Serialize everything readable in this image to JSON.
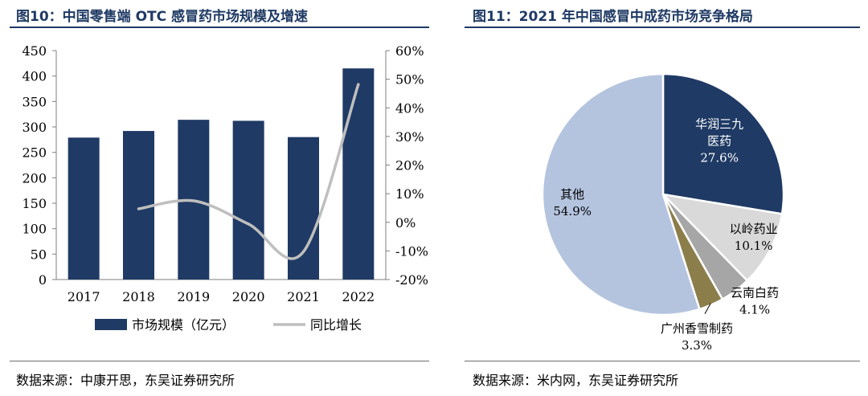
{
  "left": {
    "title": "图10：中国零售端 OTC 感冒药市场规模及增速",
    "source": "数据来源：中康开思，东吴证券研究所"
  },
  "right": {
    "title": "图11：2021 年中国感冒中成药市场竞争格局",
    "source": "数据来源：米内网，东吴证券研究所"
  },
  "chart_data": [
    {
      "type": "bar",
      "categories": [
        "2017",
        "2018",
        "2019",
        "2020",
        "2021",
        "2022"
      ],
      "series": [
        {
          "name": "市场规模（亿元）",
          "type": "bar",
          "axis": "left",
          "values": [
            279,
            292,
            314,
            312,
            280,
            415
          ],
          "color": "#1f3a64"
        },
        {
          "name": "同比增长",
          "type": "line",
          "axis": "right",
          "values": [
            null,
            4.7,
            7.5,
            -0.6,
            -10.3,
            48.2
          ],
          "color": "#bfbfbf"
        }
      ],
      "y_left": {
        "min": 0,
        "max": 450,
        "step": 50,
        "ticks": [
          "0",
          "50",
          "100",
          "150",
          "200",
          "250",
          "300",
          "350",
          "400",
          "450"
        ]
      },
      "y_right": {
        "min": -20,
        "max": 60,
        "step": 10,
        "ticks": [
          "-20%",
          "-10%",
          "0%",
          "10%",
          "20%",
          "30%",
          "40%",
          "50%",
          "60%"
        ]
      },
      "legend_position": "bottom"
    },
    {
      "type": "pie",
      "slices": [
        {
          "name": "华润三九医药",
          "lines": [
            "华润三九",
            "医药"
          ],
          "value": 27.6,
          "label": "27.6%",
          "color": "#1f3a64"
        },
        {
          "name": "以岭药业",
          "lines": [
            "以岭药业"
          ],
          "value": 10.1,
          "label": "10.1%",
          "color": "#d9d9d9"
        },
        {
          "name": "云南白药",
          "lines": [
            "云南白药"
          ],
          "value": 4.1,
          "label": "4.1%",
          "color": "#a6a6a6"
        },
        {
          "name": "广州香雪制药",
          "lines": [
            "广州香雪制药"
          ],
          "value": 3.3,
          "label": "3.3%",
          "color": "#8c7e4b"
        },
        {
          "name": "其他",
          "lines": [
            "其他"
          ],
          "value": 54.9,
          "label": "54.9%",
          "color": "#b4c4df"
        }
      ]
    }
  ]
}
